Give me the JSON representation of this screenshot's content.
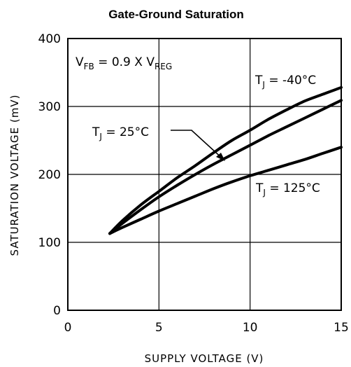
{
  "chart_data": {
    "type": "line",
    "title": "Gate-Ground Saturation",
    "xlabel": "SUPPLY VOLTAGE (V)",
    "ylabel": "SATURATION VOLTAGE (mV)",
    "xlim": [
      0,
      15
    ],
    "ylim": [
      0,
      400
    ],
    "xticks": [
      "0",
      "5",
      "10",
      "15"
    ],
    "yticks": [
      "0",
      "100",
      "200",
      "300",
      "400"
    ],
    "grid": true,
    "condition": {
      "v1": "V",
      "v1_sub": "FB",
      "mid": " = 0.9 X ",
      "v2": "V",
      "v2_sub": "REG"
    },
    "series": [
      {
        "name": "T_J = -40°C",
        "label": {
          "main": "T",
          "sub": "J",
          "rest": " = -40°C"
        },
        "points": [
          [
            2.3,
            113
          ],
          [
            3,
            132
          ],
          [
            4,
            155
          ],
          [
            5,
            175
          ],
          [
            6,
            195
          ],
          [
            7,
            213
          ],
          [
            8,
            232
          ],
          [
            9,
            250
          ],
          [
            10,
            265
          ],
          [
            11,
            281
          ],
          [
            12,
            295
          ],
          [
            13,
            308
          ],
          [
            14,
            318
          ],
          [
            15,
            328
          ]
        ]
      },
      {
        "name": "T_J = 25°C",
        "label": {
          "main": "T",
          "sub": "J",
          "rest": " = 25°C"
        },
        "points": [
          [
            2.3,
            113
          ],
          [
            3,
            128
          ],
          [
            4,
            148
          ],
          [
            5,
            167
          ],
          [
            6,
            184
          ],
          [
            7,
            200
          ],
          [
            8,
            215
          ],
          [
            9,
            229
          ],
          [
            10,
            243
          ],
          [
            11,
            257
          ],
          [
            12,
            270
          ],
          [
            13,
            283
          ],
          [
            14,
            296
          ],
          [
            15,
            309
          ]
        ]
      },
      {
        "name": "T_J = 125°C",
        "label": {
          "main": "T",
          "sub": "J",
          "rest": " = 125°C"
        },
        "points": [
          [
            2.3,
            113
          ],
          [
            3,
            122
          ],
          [
            4,
            134
          ],
          [
            5,
            146
          ],
          [
            6,
            157
          ],
          [
            7,
            168
          ],
          [
            8,
            179
          ],
          [
            9,
            189
          ],
          [
            10,
            198
          ],
          [
            11,
            206
          ],
          [
            12,
            214
          ],
          [
            13,
            222
          ],
          [
            14,
            231
          ],
          [
            15,
            240
          ]
        ]
      }
    ]
  }
}
